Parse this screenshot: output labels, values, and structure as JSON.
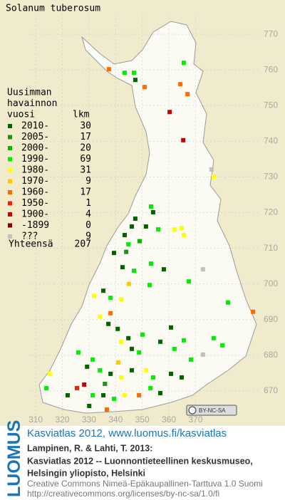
{
  "map": {
    "title": "Solanum tuberosum",
    "xlim": [
      296.6,
      403.6
    ],
    "ylim": [
      661.8,
      779.6
    ],
    "xticks": [
      310,
      320,
      330,
      340,
      350,
      360,
      370
    ],
    "yticks": [
      670,
      680,
      690,
      700,
      710,
      720,
      730,
      740,
      750,
      760,
      770
    ],
    "grid": true,
    "legend_heading": [
      "Uusimman",
      "havainnon",
      "vuosi"
    ],
    "legend_count_heading": "lkm",
    "legend": [
      {
        "label": "2010-",
        "count": 30,
        "color": "#006400"
      },
      {
        "label": "2005-",
        "count": 17,
        "color": "#1f8f1f"
      },
      {
        "label": "2000-",
        "count": 20,
        "color": "#00b400"
      },
      {
        "label": "1990-",
        "count": 69,
        "color": "#00ee00"
      },
      {
        "label": "1980-",
        "count": 31,
        "color": "#ffff00"
      },
      {
        "label": "1970-",
        "count": 9,
        "color": "#ffc800"
      },
      {
        "label": "1960-",
        "count": 17,
        "color": "#ff6a00"
      },
      {
        "label": "1950-",
        "count": 1,
        "color": "#ff1a00"
      },
      {
        "label": "1900-",
        "count": 4,
        "color": "#c80000"
      },
      {
        "label": "-1899",
        "count": 0,
        "color": "#800000"
      },
      {
        "label": "???",
        "count": 9,
        "color": "#c0c0c0"
      }
    ],
    "total_label": "Yhteensä",
    "total": 207,
    "cc_badge": "BY-NC-SA",
    "points": [
      [
        337.5,
        760.2,
        6
      ],
      [
        343.4,
        759.2,
        3
      ],
      [
        346.9,
        759.2,
        3
      ],
      [
        347.4,
        757.2,
        0
      ],
      [
        365.6,
        762.0,
        3
      ],
      [
        364.3,
        756.0,
        6
      ],
      [
        367.0,
        753.2,
        6
      ],
      [
        350.9,
        755.2,
        6
      ],
      [
        360.3,
        748.2,
        8
      ],
      [
        365.4,
        740.3,
        8
      ],
      [
        376.0,
        732.1,
        10
      ],
      [
        376.8,
        730.1,
        4
      ],
      [
        353.3,
        721.7,
        3
      ],
      [
        354.1,
        720.1,
        0
      ],
      [
        347.4,
        718.3,
        0
      ],
      [
        346.1,
        716.1,
        0
      ],
      [
        343.4,
        713.7,
        0
      ],
      [
        344.8,
        711.1,
        3
      ],
      [
        351.4,
        716.1,
        0
      ],
      [
        356.0,
        715.3,
        3
      ],
      [
        362.1,
        715.3,
        4
      ],
      [
        364.8,
        715.7,
        4
      ],
      [
        365.6,
        713.7,
        4
      ],
      [
        339.4,
        708.7,
        0
      ],
      [
        342.6,
        704.7,
        0
      ],
      [
        346.9,
        703.7,
        3
      ],
      [
        358.1,
        704.1,
        0
      ],
      [
        372.8,
        704.1,
        10
      ],
      [
        352.8,
        699.7,
        3
      ],
      [
        367.5,
        700.7,
        3
      ],
      [
        335.4,
        698.1,
        0
      ],
      [
        331.9,
        696.7,
        4
      ],
      [
        338.1,
        696.1,
        3
      ],
      [
        342.1,
        695.7,
        4
      ],
      [
        382.2,
        694.8,
        3
      ],
      [
        391.6,
        692.2,
        6
      ],
      [
        334.1,
        690.8,
        4
      ],
      [
        337.3,
        688.8,
        0
      ],
      [
        340.8,
        687.4,
        0
      ],
      [
        344.8,
        684.8,
        0
      ],
      [
        342.1,
        683.8,
        4
      ],
      [
        346.1,
        681.8,
        0
      ],
      [
        348.8,
        680.8,
        3
      ],
      [
        350.1,
        685.8,
        3
      ],
      [
        356.8,
        683.8,
        0
      ],
      [
        362.1,
        681.8,
        3
      ],
      [
        365.6,
        684.2,
        3
      ],
      [
        368.3,
        678.8,
        3
      ],
      [
        372.8,
        680.2,
        10
      ],
      [
        376.8,
        684.8,
        3
      ],
      [
        380.1,
        682.8,
        3
      ],
      [
        326.0,
        680.8,
        3
      ],
      [
        329.3,
        676.8,
        0
      ],
      [
        331.4,
        678.8,
        3
      ],
      [
        334.1,
        675.8,
        3
      ],
      [
        338.1,
        674.8,
        0
      ],
      [
        342.1,
        673.8,
        4
      ],
      [
        346.1,
        675.8,
        0
      ],
      [
        351.4,
        675.8,
        4
      ],
      [
        354.1,
        673.8,
        3
      ],
      [
        360.8,
        674.8,
        0
      ],
      [
        364.8,
        673.8,
        0
      ],
      [
        325.5,
        670.8,
        7
      ],
      [
        328.2,
        671.8,
        8
      ],
      [
        331.4,
        668.8,
        3
      ],
      [
        335.4,
        668.8,
        0
      ],
      [
        339.4,
        667.8,
        3
      ],
      [
        343.4,
        668.8,
        4
      ],
      [
        348.8,
        668.8,
        6
      ],
      [
        353.1,
        670.8,
        3
      ],
      [
        356.8,
        669.4,
        0
      ],
      [
        322.0,
        668.8,
        0
      ],
      [
        314.0,
        670.8,
        3
      ],
      [
        315.3,
        674.8,
        4
      ],
      [
        330.1,
        665.8,
        0
      ],
      [
        336.7,
        664.8,
        6
      ],
      [
        338.1,
        691.8,
        6
      ],
      [
        353.3,
        705.7,
        3
      ],
      [
        360.8,
        687.8,
        0
      ],
      [
        345.0,
        700.0,
        5
      ],
      [
        341.0,
        678.0,
        5
      ],
      [
        336.0,
        672.0,
        1
      ],
      [
        344.0,
        709.0,
        1
      ],
      [
        349.0,
        712.0,
        2
      ]
    ]
  },
  "footer": {
    "logo": "LUOMUS",
    "link": "Kasviatlas 2012, www.luomus.fi/kasviatlas",
    "citation": [
      "Lampinen, R. & Lahti, T. 2013:",
      "Kasviatlas 2012 -- Luonnontieteellinen keskusmuseo,",
      "Helsingin yliopisto, Helsinki"
    ],
    "license": [
      "Creative Commons Nimeä-Epäkaupallinen-Tarttuva 1.0 Suomi",
      "http://creativecommons.org/licenses/by-nc-sa/1.0/fi"
    ]
  }
}
